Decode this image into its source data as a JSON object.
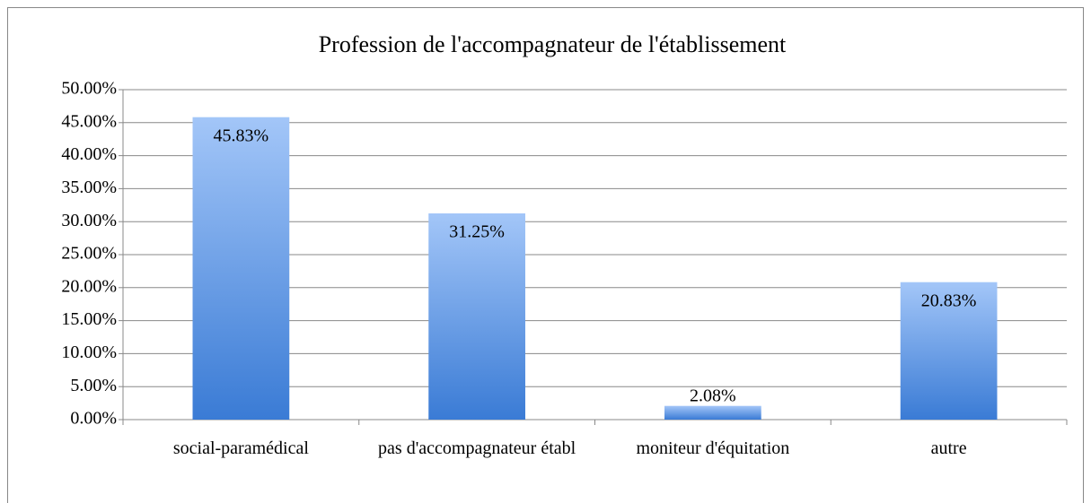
{
  "chart_data": {
    "type": "bar",
    "title": "Profession de l'accompagnateur de l'établissement",
    "categories": [
      "social-paramédical",
      "pas d'accompagnateur établ",
      "moniteur d'équitation",
      "autre"
    ],
    "values": [
      45.83,
      31.25,
      2.08,
      20.83
    ],
    "value_labels": [
      "45.83%",
      "31.25%",
      "2.08%",
      "20.83%"
    ],
    "color": "#4a89dc",
    "ylim": [
      0,
      50
    ],
    "yticks": [
      {
        "value": 0,
        "label": "0.00%"
      },
      {
        "value": 5,
        "label": "5.00%"
      },
      {
        "value": 10,
        "label": "10.00%"
      },
      {
        "value": 15,
        "label": "15.00%"
      },
      {
        "value": 20,
        "label": "20.00%"
      },
      {
        "value": 25,
        "label": "25.00%"
      },
      {
        "value": 30,
        "label": "30.00%"
      },
      {
        "value": 35,
        "label": "35.00%"
      },
      {
        "value": 40,
        "label": "40.00%"
      },
      {
        "value": 45,
        "label": "45.00%"
      },
      {
        "value": 50,
        "label": "50.00%"
      }
    ],
    "grid": true
  }
}
